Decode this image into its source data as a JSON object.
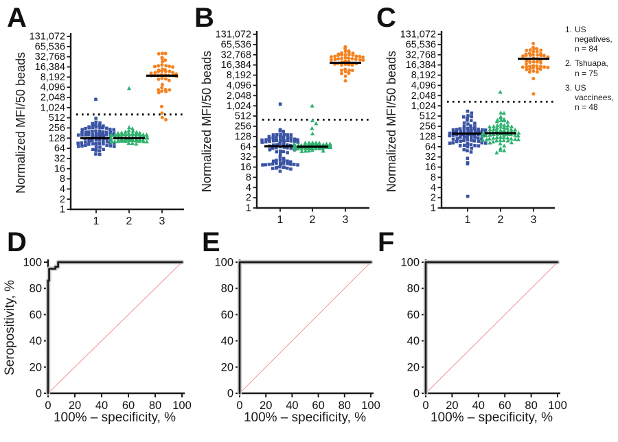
{
  "panels": {
    "a": {
      "letter": "A"
    },
    "b": {
      "letter": "B"
    },
    "c": {
      "letter": "C"
    },
    "d": {
      "letter": "D"
    },
    "e": {
      "letter": "E"
    },
    "f": {
      "letter": "F"
    }
  },
  "legend": {
    "items": [
      {
        "num": "1.",
        "label": "US negatives,",
        "count": "n = 84"
      },
      {
        "num": "2.",
        "label": "Tshuapa,",
        "count": "n = 75"
      },
      {
        "num": "3.",
        "label": "US vaccinees,",
        "count": "n = 48"
      }
    ]
  },
  "colors": {
    "group1": "#3a53a4",
    "group2": "#2fb36f",
    "group3": "#f58220",
    "median_line": "#000000",
    "cutoff_line": "#000000",
    "roc_line": "#1a1a1a",
    "roc_halo": "#c9c9c9",
    "diagonal": "#f59c9c",
    "axis": "#1a1a1a"
  },
  "chart_data": [
    {
      "id": "A",
      "type": "beeswarm",
      "scale": "log2",
      "ylabel": "Normalized MFI/50 beads",
      "ylim": [
        1,
        131072
      ],
      "yticks": [
        "131,072",
        "65,536",
        "32,768",
        "16,384",
        "8,192",
        "4,096",
        "2,048",
        "1,024",
        "512",
        "256",
        "128",
        "64",
        "32",
        "16",
        "8",
        "4",
        "2",
        "1"
      ],
      "categories": [
        "1",
        "2",
        "3"
      ],
      "cutoff_value": 640,
      "groups": [
        {
          "category": "1",
          "name": "US negatives",
          "n": 84,
          "marker": "square",
          "color_key": "group1",
          "median": 128,
          "range": [
            26,
            600
          ],
          "clusters": [
            {
              "log2_mean": 7.05,
              "log2_sd": 0.75,
              "weight": 1
            }
          ],
          "outliers": [
            1800
          ]
        },
        {
          "category": "2",
          "name": "Tshuapa",
          "n": 75,
          "marker": "triangle",
          "color_key": "group2",
          "median": 128,
          "range": [
            90,
            560
          ],
          "clusters": [
            {
              "log2_mean": 7.0,
              "log2_sd": 0.3,
              "weight": 0.9
            },
            {
              "log2_mean": 7.9,
              "log2_sd": 0.55,
              "weight": 0.1
            }
          ],
          "outliers": [
            3800
          ]
        },
        {
          "category": "3",
          "name": "US vaccinees",
          "n": 48,
          "marker": "circle",
          "color_key": "group3",
          "median": 9000,
          "range": [
            380,
            98000
          ],
          "clusters": [
            {
              "log2_mean": 13.3,
              "log2_sd": 1.15,
              "weight": 1
            }
          ],
          "outliers": [
            450,
            520,
            700,
            1100
          ]
        }
      ]
    },
    {
      "id": "B",
      "type": "beeswarm",
      "scale": "log2",
      "ylabel": "Normalized MFI/50 beads",
      "ylim": [
        1,
        131072
      ],
      "yticks": [
        "131,072",
        "65,536",
        "32,768",
        "16,384",
        "8,192",
        "4,096",
        "2,048",
        "1,024",
        "512",
        "256",
        "128",
        "64",
        "32",
        "16",
        "8",
        "4",
        "2",
        "1"
      ],
      "categories": [
        "1",
        "2",
        "3"
      ],
      "cutoff_value": 400,
      "groups": [
        {
          "category": "1",
          "name": "US negatives",
          "n": 84,
          "marker": "square",
          "color_key": "group1",
          "median": 66,
          "range": [
            9,
            420
          ],
          "clusters": [
            {
              "log2_mean": 6.35,
              "log2_sd": 0.72,
              "weight": 0.72
            },
            {
              "log2_mean": 4.35,
              "log2_sd": 0.38,
              "weight": 0.28
            }
          ],
          "outliers": [
            1150
          ]
        },
        {
          "category": "2",
          "name": "Tshuapa",
          "n": 75,
          "marker": "triangle",
          "color_key": "group2",
          "median": 64,
          "range": [
            52,
            560
          ],
          "clusters": [
            {
              "log2_mean": 6.02,
              "log2_sd": 0.14,
              "weight": 0.85
            },
            {
              "log2_mean": 7.6,
              "log2_sd": 0.95,
              "weight": 0.15
            }
          ],
          "outliers": [
            1024
          ]
        },
        {
          "category": "3",
          "name": "US vaccinees",
          "n": 48,
          "marker": "circle",
          "color_key": "group3",
          "median": 19000,
          "range": [
            3900,
            62000
          ],
          "clusters": [
            {
              "log2_mean": 14.3,
              "log2_sd": 0.75,
              "weight": 1
            }
          ],
          "outliers": []
        }
      ]
    },
    {
      "id": "C",
      "type": "beeswarm",
      "scale": "log2",
      "ylabel": "Normalized MFI/50 beads",
      "ylim": [
        1,
        131072
      ],
      "yticks": [
        "131,072",
        "65,536",
        "32,768",
        "16,384",
        "8,192",
        "4,096",
        "2,048",
        "1,024",
        "512",
        "256",
        "128",
        "64",
        "32",
        "16",
        "8",
        "4",
        "2",
        "1"
      ],
      "categories": [
        "1",
        "2",
        "3"
      ],
      "cutoff_value": 1350,
      "groups": [
        {
          "category": "1",
          "name": "US negatives",
          "n": 84,
          "marker": "square",
          "color_key": "group1",
          "median": 155,
          "range": [
            11,
            1150
          ],
          "clusters": [
            {
              "log2_mean": 7.35,
              "log2_sd": 0.95,
              "weight": 0.92
            },
            {
              "log2_mean": 4.6,
              "log2_sd": 0.45,
              "weight": 0.08
            }
          ],
          "outliers": [
            2.2
          ]
        },
        {
          "category": "2",
          "name": "Tshuapa",
          "n": 75,
          "marker": "triangle",
          "color_key": "group2",
          "median": 160,
          "range": [
            38,
            1000
          ],
          "clusters": [
            {
              "log2_mean": 7.3,
              "log2_sd": 0.85,
              "weight": 1
            }
          ],
          "outliers": [
            2600
          ]
        },
        {
          "category": "3",
          "name": "US vaccinees",
          "n": 48,
          "marker": "circle",
          "color_key": "group3",
          "median": 25000,
          "range": [
            9000,
            70000
          ],
          "clusters": [
            {
              "log2_mean": 14.6,
              "log2_sd": 0.75,
              "weight": 1
            }
          ],
          "outliers": [
            2300,
            6500
          ]
        }
      ]
    },
    {
      "id": "D",
      "type": "roc",
      "xlabel": "100% – specificity, %",
      "ylabel": "Seropositivity, %",
      "xlim": [
        0,
        100
      ],
      "ylim": [
        0,
        100
      ],
      "xticks": [
        "0",
        "20",
        "40",
        "60",
        "80",
        "100"
      ],
      "yticks": [
        "0",
        "20",
        "40",
        "60",
        "80",
        "100"
      ],
      "curve": [
        [
          0,
          0
        ],
        [
          0,
          86
        ],
        [
          0.8,
          86
        ],
        [
          0.8,
          95
        ],
        [
          5.5,
          95
        ],
        [
          5.5,
          96.5
        ],
        [
          7.5,
          96.5
        ],
        [
          7.5,
          100
        ],
        [
          100,
          100
        ]
      ],
      "diagonal": true
    },
    {
      "id": "E",
      "type": "roc",
      "xlabel": "100% – specificity, %",
      "ylabel": "",
      "xlim": [
        0,
        100
      ],
      "ylim": [
        0,
        100
      ],
      "xticks": [
        "0",
        "20",
        "40",
        "60",
        "80",
        "100"
      ],
      "yticks": [
        "0",
        "20",
        "40",
        "60",
        "80",
        "100"
      ],
      "curve": [
        [
          0,
          0
        ],
        [
          0,
          100
        ],
        [
          100,
          100
        ]
      ],
      "diagonal": true
    },
    {
      "id": "F",
      "type": "roc",
      "xlabel": "100% – specificity, %",
      "ylabel": "",
      "xlim": [
        0,
        100
      ],
      "ylim": [
        0,
        100
      ],
      "xticks": [
        "0",
        "20",
        "40",
        "60",
        "80",
        "100"
      ],
      "yticks": [
        "0",
        "20",
        "40",
        "60",
        "80",
        "100"
      ],
      "curve": [
        [
          0,
          0
        ],
        [
          0,
          100
        ],
        [
          100,
          100
        ]
      ],
      "diagonal": true
    }
  ]
}
